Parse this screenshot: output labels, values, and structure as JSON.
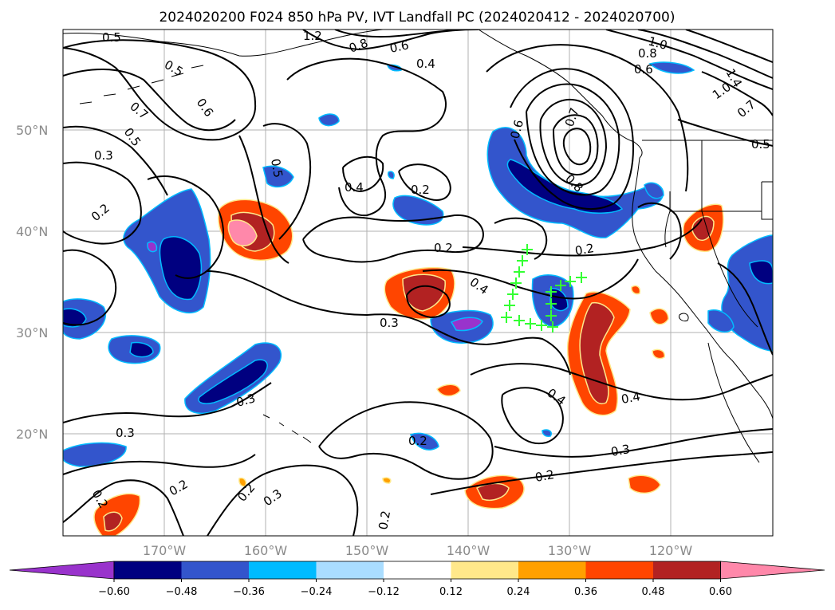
{
  "title": "2024020200 F024 850 hPa PV, IVT Landfall PC (2024020412 - 2024020700)",
  "map": {
    "lat_labels": [
      "50°N",
      "40°N",
      "30°N",
      "20°N"
    ],
    "lon_labels": [
      "170°W",
      "160°W",
      "150°W",
      "140°W",
      "130°W",
      "120°W"
    ],
    "contour_labels": [
      "0.5",
      "0.5",
      "0.7",
      "0.5",
      "0.6",
      "1.2",
      "0.8",
      "0.6",
      "0.4",
      "1.0",
      "0.8",
      "0.6",
      "1.4",
      "1.0",
      "0.7",
      "0.5",
      "0.3",
      "0.5",
      "0.4",
      "0.2",
      "0.6",
      "0.7",
      "0.8",
      "0.2",
      "0.2",
      "0.2",
      "0.4",
      "0.3",
      "0.3",
      "0.3",
      "0.4",
      "0.4",
      "0.3",
      "0.2",
      "0.2",
      "0.2",
      "0.3",
      "0.2",
      "0.2",
      "0.2"
    ]
  },
  "colorbar": {
    "ticks": [
      "−0.60",
      "−0.48",
      "−0.36",
      "−0.24",
      "−0.12",
      "0.12",
      "0.24",
      "0.36",
      "0.48",
      "0.60"
    ],
    "colors": [
      "#9933cc",
      "#000080",
      "#3355cc",
      "#00bbff",
      "#aaddff",
      "#ffffff",
      "#ffe88a",
      "#ffa000",
      "#ff4500",
      "#b22222",
      "#ff88aa"
    ]
  },
  "fill_colors": {
    "neg1": "#aaddff",
    "neg2": "#00bbff",
    "neg3": "#3355cc",
    "neg4": "#000080",
    "neg5": "#9933cc",
    "pos1": "#ffe88a",
    "pos2": "#ffa000",
    "pos3": "#ff4500",
    "pos4": "#b22222",
    "pos5": "#ff88aa",
    "marker": "#33ff33"
  }
}
